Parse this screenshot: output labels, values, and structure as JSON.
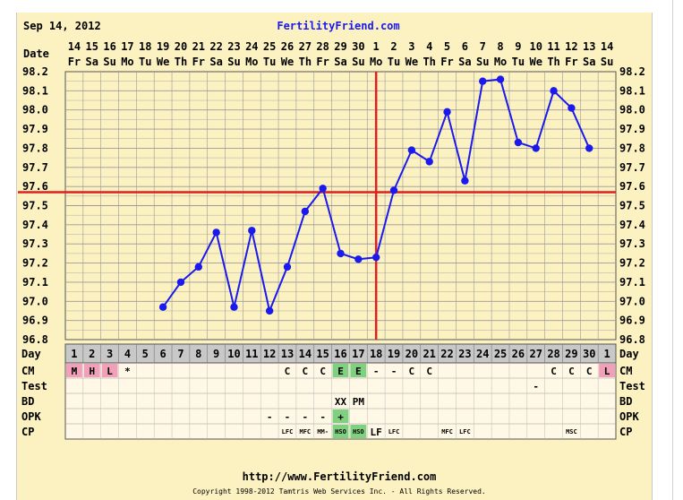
{
  "header": {
    "date": "Sep 14, 2012",
    "site": "FertilityFriend.com"
  },
  "labels": {
    "date_row": "Date",
    "day_row": "Day",
    "rows": [
      "CM",
      "Test",
      "BD",
      "OPK",
      "CP"
    ]
  },
  "footer": {
    "url": "http://www.FertilityFriend.com",
    "copyright": "Copyright 1998-2012 Tamtris Web Services Inc. - All Rights Reserved."
  },
  "colors": {
    "background": "#fbf1c1",
    "grid": "#9a9a9a",
    "line": "#1a1aee",
    "coverline": "#e02020",
    "header_link": "#1a1aee",
    "menstrual": "#f0a0b8",
    "egg_white": "#7fd07f"
  },
  "chart_data": {
    "type": "line",
    "dates": [
      "14",
      "15",
      "16",
      "17",
      "18",
      "19",
      "20",
      "21",
      "22",
      "23",
      "24",
      "25",
      "26",
      "27",
      "28",
      "29",
      "30",
      "1",
      "2",
      "3",
      "4",
      "5",
      "6",
      "7",
      "8",
      "9",
      "10",
      "11",
      "12",
      "13",
      "14"
    ],
    "weekdays": [
      "Fr",
      "Sa",
      "Su",
      "Mo",
      "Tu",
      "We",
      "Th",
      "Fr",
      "Sa",
      "Su",
      "Mo",
      "Tu",
      "We",
      "Th",
      "Fr",
      "Sa",
      "Su",
      "Mo",
      "Tu",
      "We",
      "Th",
      "Fr",
      "Sa",
      "Su",
      "Mo",
      "Tu",
      "We",
      "Th",
      "Fr",
      "Sa",
      "Su"
    ],
    "cycle_days": [
      "1",
      "2",
      "3",
      "4",
      "5",
      "6",
      "7",
      "8",
      "9",
      "10",
      "11",
      "12",
      "13",
      "14",
      "15",
      "16",
      "17",
      "18",
      "19",
      "20",
      "21",
      "22",
      "23",
      "24",
      "25",
      "26",
      "27",
      "28",
      "29",
      "30",
      "1"
    ],
    "y_ticks": [
      "98.2",
      "98.1",
      "98.0",
      "97.9",
      "97.8",
      "97.7",
      "97.6",
      "97.5",
      "97.4",
      "97.3",
      "97.2",
      "97.1",
      "97.0",
      "96.9",
      "96.8"
    ],
    "ylim": [
      96.8,
      98.2
    ],
    "temperatures": [
      null,
      null,
      null,
      null,
      null,
      96.97,
      97.1,
      97.18,
      97.36,
      96.97,
      97.37,
      96.95,
      97.18,
      97.47,
      97.59,
      97.25,
      97.22,
      97.23,
      97.58,
      97.79,
      97.73,
      97.99,
      97.63,
      98.15,
      98.16,
      97.83,
      97.8,
      98.1,
      98.01,
      97.8,
      null
    ],
    "coverline": 97.57,
    "ovulation_day": 18,
    "rows": {
      "CM": [
        "M",
        "H",
        "L",
        "*",
        "",
        "",
        "",
        "",
        "",
        "",
        "",
        "",
        "C",
        "C",
        "C",
        "E",
        "E",
        "-",
        "-",
        "C",
        "C",
        "",
        "",
        "",
        "",
        "",
        "",
        "C",
        "C",
        "C",
        "L"
      ],
      "Test": [
        "",
        "",
        "",
        "",
        "",
        "",
        "",
        "",
        "",
        "",
        "",
        "",
        "",
        "",
        "",
        "",
        "",
        "",
        "",
        "",
        "",
        "",
        "",
        "",
        "",
        "",
        "-",
        "",
        "",
        "",
        ""
      ],
      "BD": [
        "",
        "",
        "",
        "",
        "",
        "",
        "",
        "",
        "",
        "",
        "",
        "",
        "",
        "",
        "",
        "XX",
        "PM",
        "",
        "",
        "",
        "",
        "",
        "",
        "",
        "",
        "",
        "",
        "",
        "",
        "",
        ""
      ],
      "OPK": [
        "",
        "",
        "",
        "",
        "",
        "",
        "",
        "",
        "",
        "",
        "",
        "-",
        "-",
        "-",
        "-",
        "+",
        "",
        "",
        "",
        "",
        "",
        "",
        "",
        "",
        "",
        "",
        "",
        "",
        "",
        "",
        ""
      ],
      "CP": [
        "",
        "",
        "",
        "",
        "",
        "",
        "",
        "",
        "",
        "",
        "",
        "",
        "LFC",
        "MFC",
        "MM-",
        "HSO",
        "HSO",
        "LF",
        "LFC",
        "",
        "",
        "MFC",
        "LFC",
        "",
        "",
        "",
        "",
        "",
        "MSC",
        "",
        ""
      ]
    }
  }
}
